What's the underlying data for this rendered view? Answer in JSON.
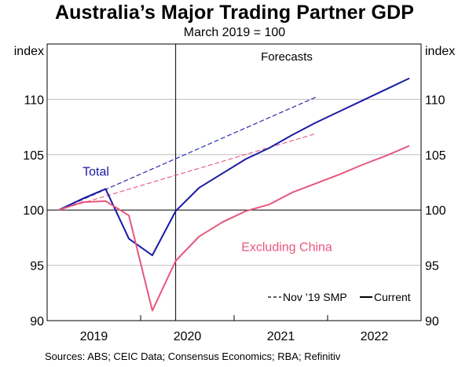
{
  "title": "Australia’s Major Trading Partner GDP",
  "subtitle": "March 2019 = 100",
  "source": "Sources:  ABS; CEIC Data; Consensus Economics; RBA; Refinitiv",
  "chart_data": {
    "type": "line",
    "title": "Australia’s Major Trading Partner GDP",
    "subtitle": "March 2019 = 100",
    "ylabel_left": "index",
    "ylabel_right": "index",
    "ylim": [
      90,
      115
    ],
    "yticks": [
      90,
      95,
      100,
      105,
      110
    ],
    "xlim": [
      2019.0,
      2023.0
    ],
    "x_tick_labels": [
      {
        "label": "2019",
        "at": 2019.5
      },
      {
        "label": "2020",
        "at": 2020.5
      },
      {
        "label": "2021",
        "at": 2021.5
      },
      {
        "label": "2022",
        "at": 2022.5
      }
    ],
    "x_ticks": [
      2020.0,
      2021.0,
      2022.0
    ],
    "reference_line_y": 100,
    "forecast_start": 2020.375,
    "forecast_label": "Forecasts",
    "grid": true,
    "legend": {
      "placement": "bottom-right",
      "entries": [
        {
          "label": "Nov ’19 SMP",
          "style": "dashed"
        },
        {
          "label": "Current",
          "style": "solid"
        }
      ]
    },
    "series": [
      {
        "name": "Total",
        "label_position": "left",
        "color": "#1a1aa6",
        "style": "solid",
        "x": [
          2019.125,
          2019.375,
          2019.625,
          2019.875,
          2020.125,
          2020.375,
          2020.625,
          2020.875,
          2021.125,
          2021.375,
          2021.625,
          2021.875,
          2022.125,
          2022.375,
          2022.625,
          2022.875
        ],
        "values": [
          100.0,
          101.0,
          101.9,
          97.4,
          95.9,
          99.9,
          102.0,
          103.3,
          104.6,
          105.6,
          106.8,
          107.9,
          108.9,
          109.9,
          110.9,
          111.9
        ]
      },
      {
        "name": "Excluding China",
        "label_position": "bottom",
        "color": "#e8567d",
        "style": "solid",
        "x": [
          2019.125,
          2019.375,
          2019.625,
          2019.875,
          2020.125,
          2020.375,
          2020.625,
          2020.875,
          2021.125,
          2021.375,
          2021.625,
          2021.875,
          2022.125,
          2022.375,
          2022.625,
          2022.875
        ],
        "values": [
          100.0,
          100.7,
          100.8,
          99.5,
          90.9,
          95.4,
          97.6,
          98.9,
          99.9,
          100.5,
          101.6,
          102.4,
          103.2,
          104.1,
          104.9,
          105.8
        ]
      },
      {
        "name": "Total – Nov ’19 SMP",
        "color": "#1a1aa6",
        "style": "dashed",
        "x": [
          2019.125,
          2021.875
        ],
        "values": [
          100.0,
          110.2
        ]
      },
      {
        "name": "Excluding China – Nov ’19 SMP",
        "color": "#e8567d",
        "style": "dashed",
        "x": [
          2019.125,
          2021.875
        ],
        "values": [
          100.0,
          106.9
        ]
      }
    ]
  }
}
